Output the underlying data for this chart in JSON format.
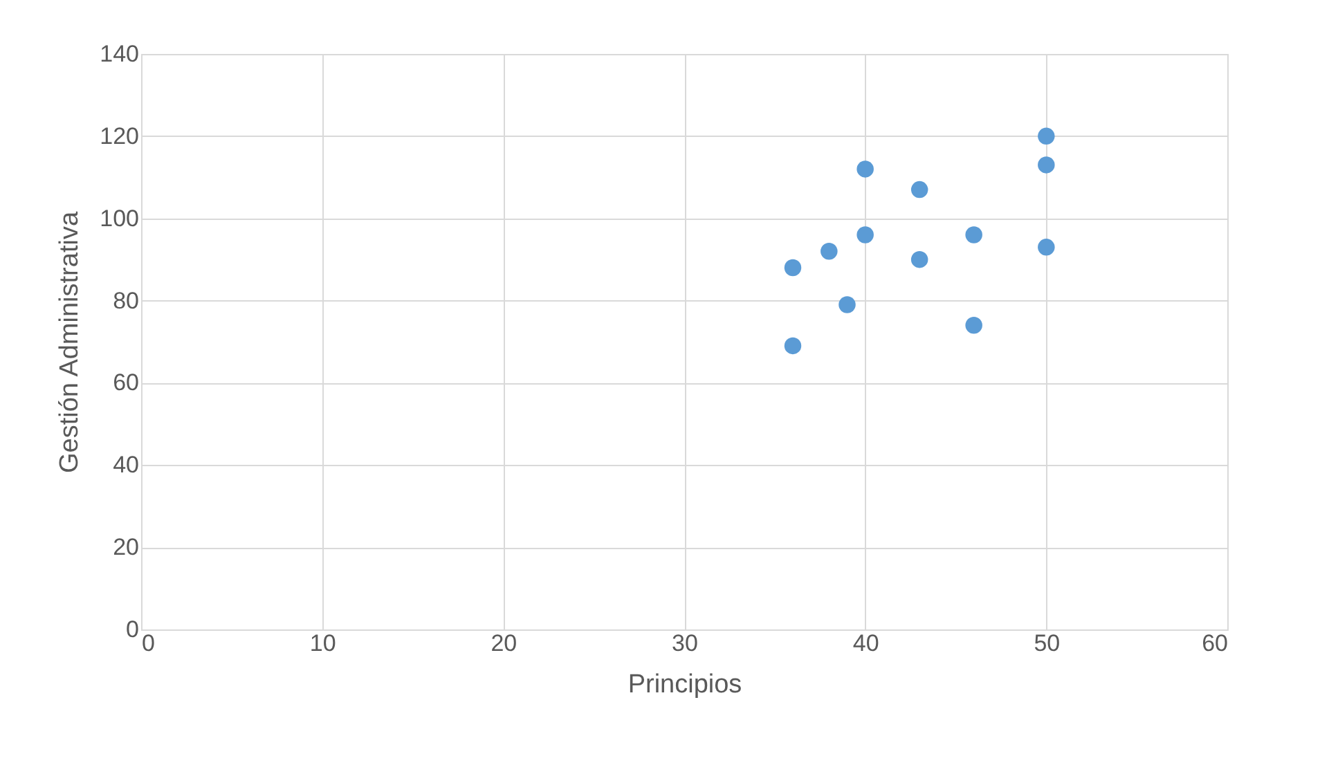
{
  "chart_data": {
    "type": "scatter",
    "xlabel": "Principios",
    "ylabel": "Gestión Administrativa",
    "x": [
      36,
      36,
      38,
      39,
      40,
      40,
      43,
      43,
      46,
      46,
      50,
      50,
      50
    ],
    "series": [
      {
        "color": "#5b9bd5",
        "values": [
          88,
          69,
          92,
          79,
          112,
          96,
          107,
          90,
          96,
          74,
          120,
          113,
          93
        ]
      }
    ],
    "xlim": [
      0,
      60
    ],
    "xticks": [
      0,
      10,
      20,
      30,
      40,
      50,
      60
    ],
    "ylim": [
      0,
      140
    ],
    "yticks": [
      0,
      20,
      40,
      60,
      80,
      100,
      120,
      140
    ],
    "grid": true,
    "marker": "circle"
  }
}
